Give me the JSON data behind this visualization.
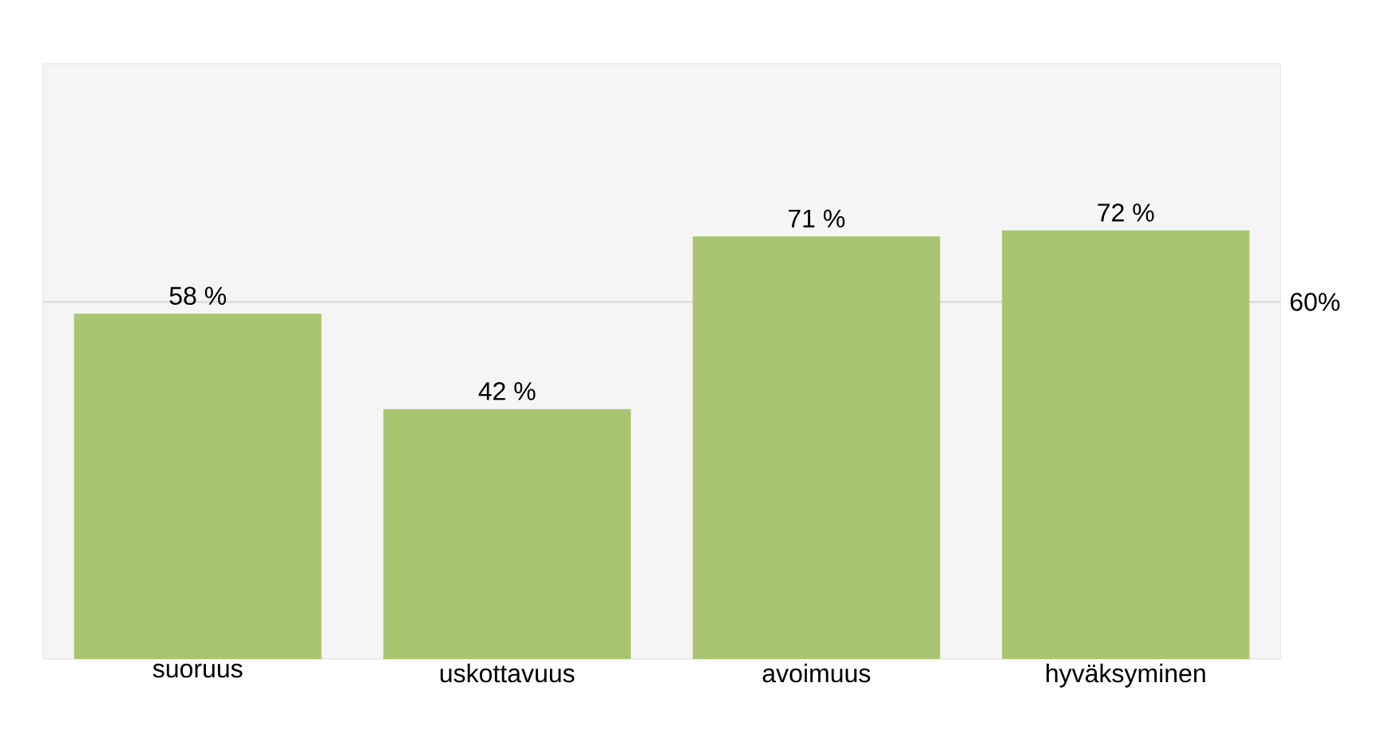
{
  "chart_data": {
    "type": "bar",
    "categories": [
      "suoruus",
      "uskottavuus",
      "avoimuus",
      "hyväksyminen"
    ],
    "values": [
      58,
      42,
      71,
      72
    ],
    "color": "#aac571",
    "value_labels": [
      "58 %",
      "42 %",
      "71 %",
      "72 %"
    ],
    "ylim": [
      0,
      100
    ],
    "tick_labels": "x",
    "ref_lines": [
      {
        "axis": "y",
        "value": 60,
        "label": "60%",
        "color": "#dddddd"
      }
    ]
  }
}
